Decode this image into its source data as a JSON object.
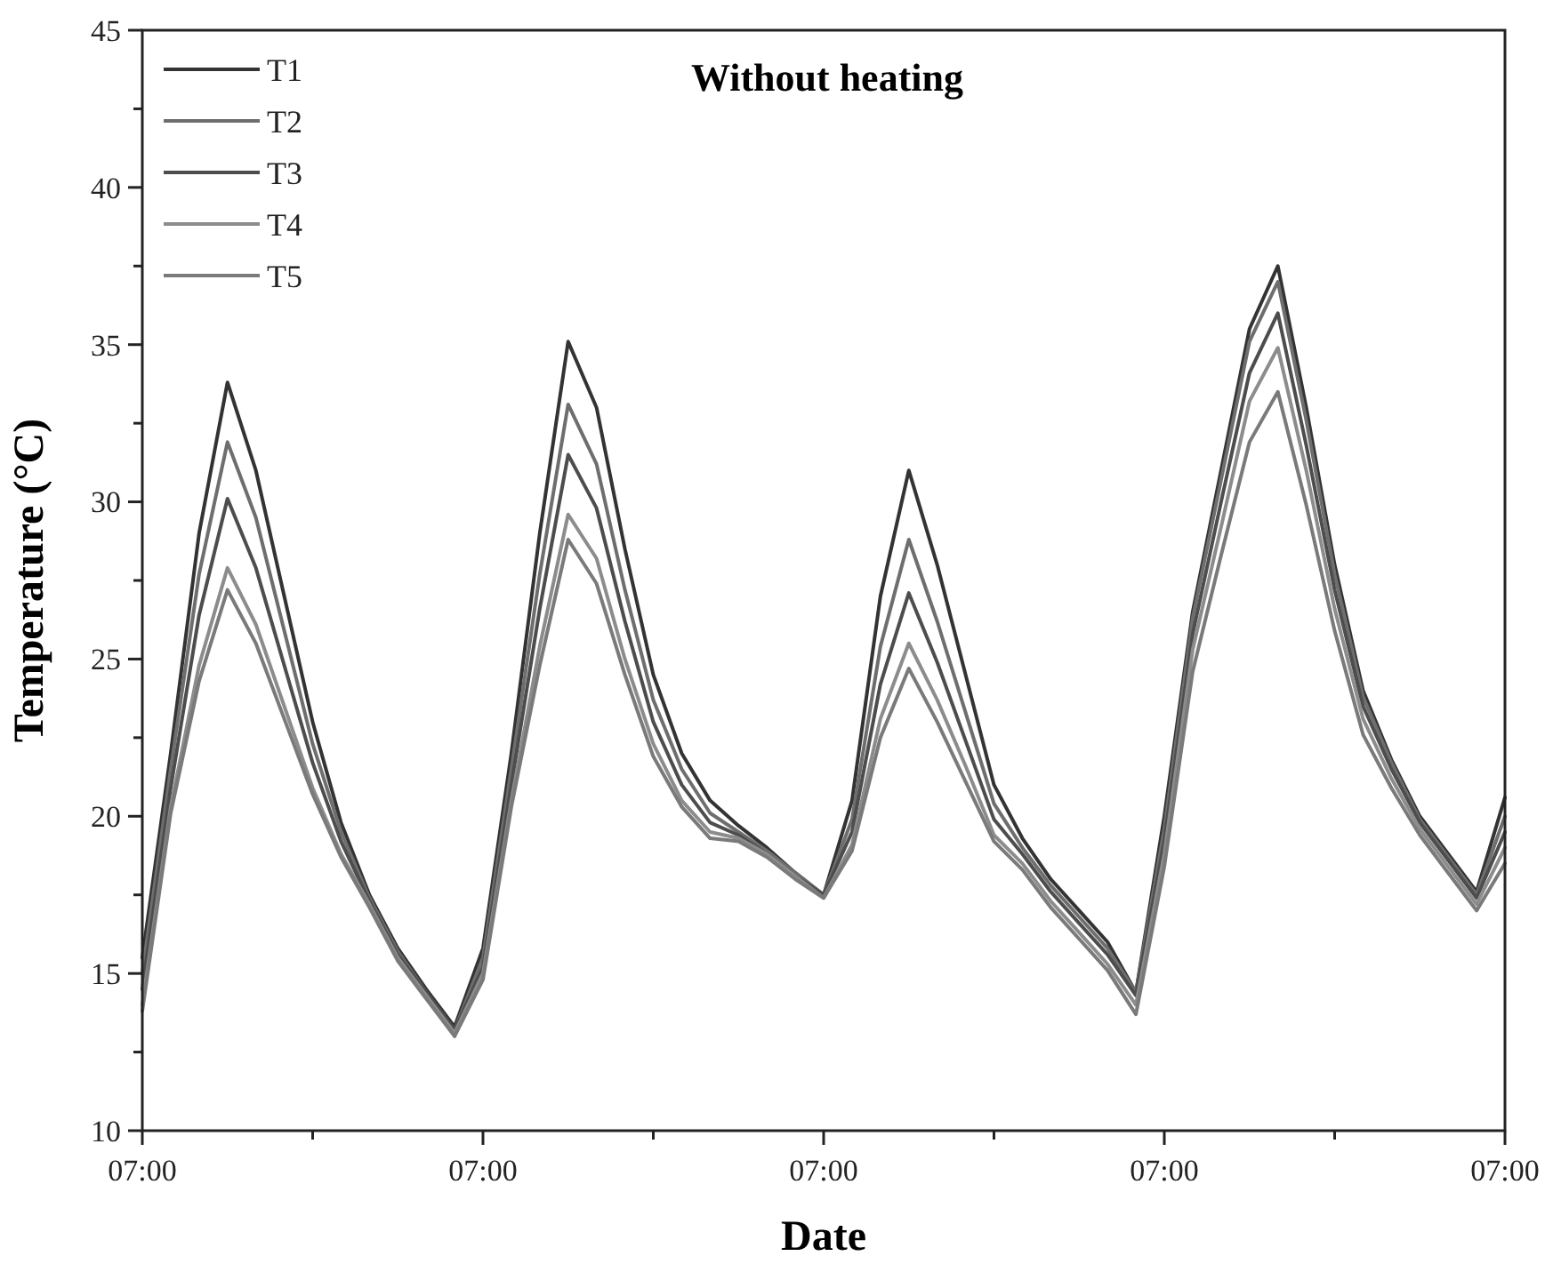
{
  "chart_data": {
    "type": "line",
    "title": "Without heating",
    "xlabel": "Date",
    "ylabel": "Temperature (°C)",
    "categories": [
      "07:00",
      null,
      null,
      null,
      null,
      null,
      null,
      null,
      null,
      null,
      null,
      null,
      "07:00",
      null,
      null,
      null,
      null,
      null,
      null,
      null,
      null,
      null,
      null,
      null,
      "07:00",
      null,
      null,
      null,
      null,
      null,
      null,
      null,
      null,
      null,
      null,
      null,
      "07:00",
      null,
      null,
      null,
      null,
      null,
      null,
      null,
      null,
      null,
      null,
      null,
      "07:00"
    ],
    "series": [
      {
        "name": "T1",
        "color": "#333333",
        "values": [
          15.5,
          22,
          29,
          33.8,
          31,
          27,
          23,
          19.8,
          17.5,
          15.8,
          14.5,
          13.3,
          15.8,
          22,
          29,
          35.1,
          33,
          28.5,
          24.5,
          22,
          20.5,
          19.7,
          19,
          18.2,
          17.5,
          20.5,
          27,
          31,
          28,
          24.5,
          21,
          19.3,
          18,
          17,
          16,
          14.4,
          20,
          26.5,
          31,
          35.5,
          37.5,
          33,
          28,
          24,
          21.8,
          20,
          18.8,
          17.6,
          20.6
        ]
      },
      {
        "name": "T2",
        "color": "#6e6e6e",
        "values": [
          15,
          21.5,
          27.7,
          31.9,
          29.5,
          25.9,
          22.3,
          19.5,
          17.4,
          15.7,
          14.4,
          13.2,
          15.5,
          21.5,
          27.7,
          33.1,
          31.2,
          27.2,
          23.7,
          21.5,
          20.1,
          19.5,
          18.9,
          18.2,
          17.5,
          19.9,
          25.4,
          28.8,
          26.2,
          23.3,
          20.4,
          19,
          17.8,
          16.8,
          15.8,
          14.4,
          19.6,
          26.3,
          30.7,
          35.1,
          37,
          32.6,
          27.7,
          23.8,
          21.7,
          19.9,
          18.7,
          17.5,
          20
        ]
      },
      {
        "name": "T3",
        "color": "#4d4d4d",
        "values": [
          14.5,
          20.9,
          26.4,
          30.1,
          27.9,
          24.8,
          21.7,
          19.2,
          17.3,
          15.6,
          14.4,
          13.2,
          15.2,
          21,
          26.6,
          31.5,
          29.8,
          26.2,
          23,
          21,
          19.8,
          19.4,
          18.8,
          18.1,
          17.5,
          19.5,
          24.2,
          27.1,
          24.9,
          22.4,
          19.9,
          18.8,
          17.6,
          16.6,
          15.6,
          14.3,
          19.2,
          25.8,
          30,
          34.1,
          36,
          31.8,
          27.2,
          23.5,
          21.5,
          19.8,
          18.6,
          17.4,
          19.5
        ]
      },
      {
        "name": "T4",
        "color": "#8c8c8c",
        "values": [
          14,
          20.3,
          24.8,
          27.9,
          26.1,
          23.5,
          20.9,
          18.8,
          17.2,
          15.5,
          14.3,
          13.1,
          15,
          20.5,
          25.4,
          29.6,
          28.2,
          25,
          22.3,
          20.5,
          19.5,
          19.3,
          18.8,
          18.1,
          17.4,
          19.1,
          23.1,
          25.5,
          23.7,
          21.6,
          19.4,
          18.5,
          17.3,
          16.3,
          15.3,
          14,
          18.8,
          25.3,
          29.2,
          33.2,
          34.9,
          31,
          26.6,
          23.1,
          21.2,
          19.6,
          18.4,
          17.2,
          19
        ]
      },
      {
        "name": "T5",
        "color": "#7a7a7a",
        "values": [
          13.8,
          20.1,
          24.3,
          27.2,
          25.5,
          23.1,
          20.7,
          18.7,
          17.1,
          15.4,
          14.2,
          13,
          14.8,
          20.3,
          24.8,
          28.8,
          27.4,
          24.5,
          21.9,
          20.3,
          19.3,
          19.2,
          18.7,
          18,
          17.4,
          18.9,
          22.5,
          24.7,
          23,
          21.1,
          19.2,
          18.3,
          17.1,
          16.1,
          15.1,
          13.7,
          18.4,
          24.6,
          28.3,
          31.9,
          33.5,
          29.9,
          25.9,
          22.6,
          20.9,
          19.4,
          18.2,
          17,
          18.5
        ]
      }
    ],
    "ylim": [
      10,
      45
    ],
    "yticks": [
      10,
      {
        "value": 12.5,
        "label": null
      },
      15,
      {
        "value": 17.5,
        "label": null
      },
      20,
      {
        "value": 22.5,
        "label": null
      },
      25,
      {
        "value": 27.5,
        "label": null
      },
      30,
      {
        "value": 32.5,
        "label": null
      },
      35,
      {
        "value": 37.5,
        "label": null
      },
      40,
      {
        "value": 42.5,
        "label": null
      },
      45
    ],
    "legend": "top left",
    "marker": "none",
    "line_style": "solid"
  }
}
